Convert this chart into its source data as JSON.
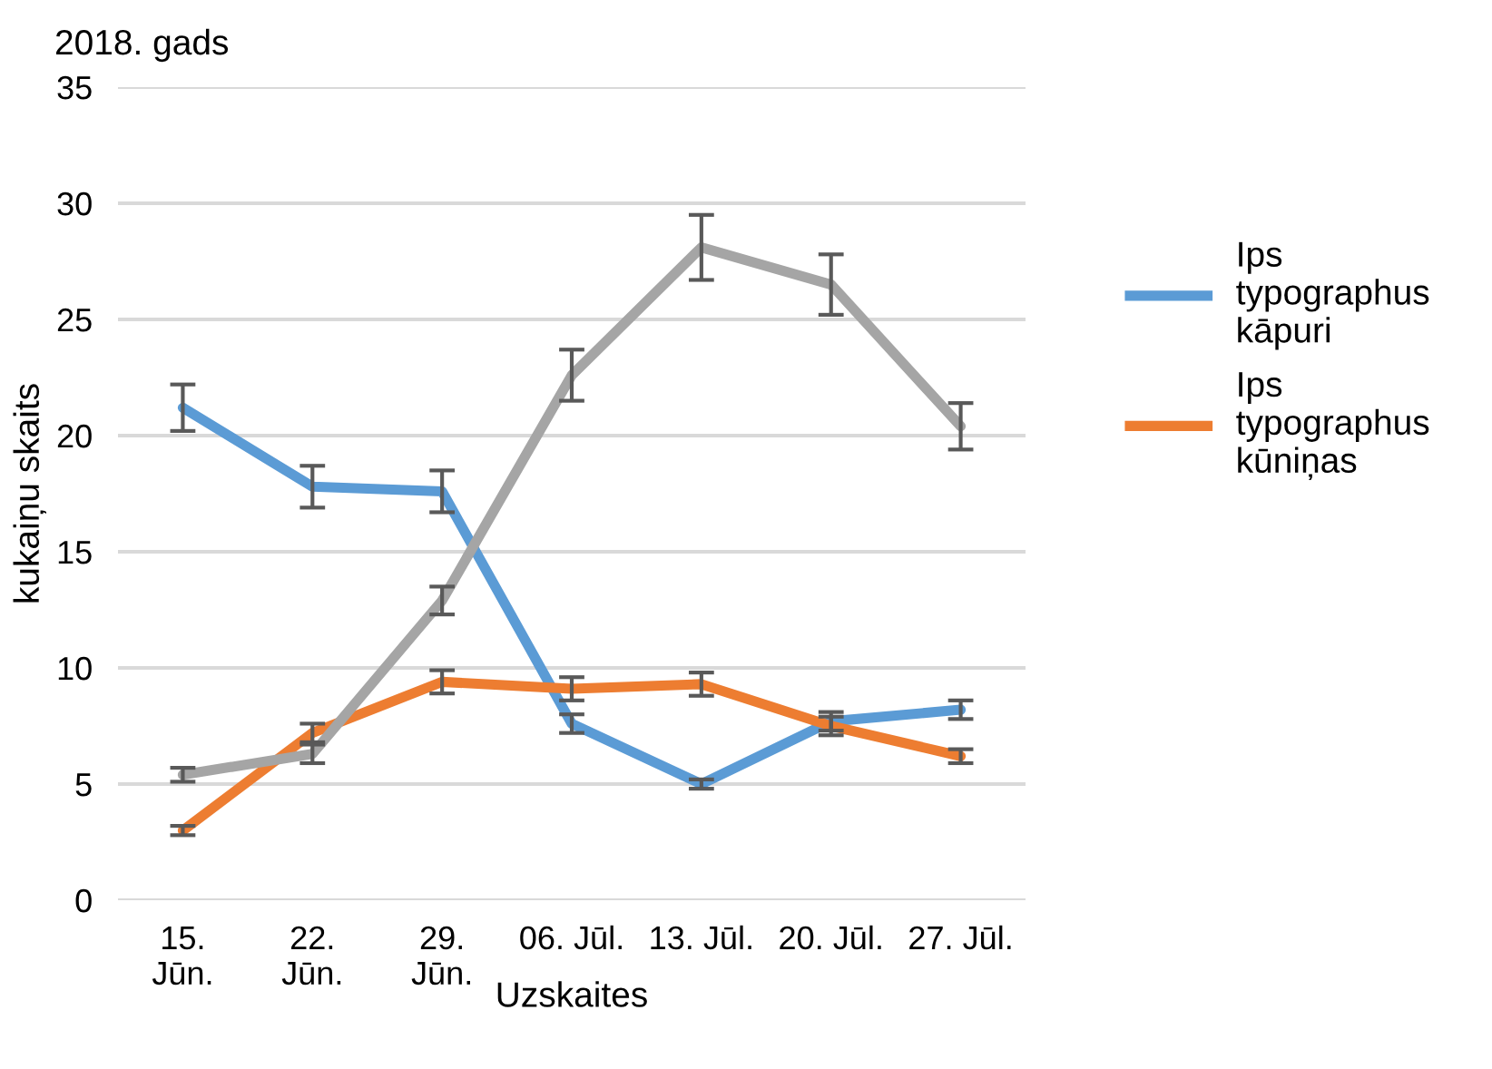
{
  "chart_data": {
    "type": "line",
    "title": "2018. gads",
    "xlabel": "Uzskaites",
    "ylabel": "kukaiņu skaits",
    "categories": [
      "15.\nJūn.",
      "22.\nJūn.",
      "29.\nJūn.",
      "06. Jūl.",
      "13. Jūl.",
      "20. Jūl.",
      "27. Jūl."
    ],
    "series": [
      {
        "name": "Ips\ntypographus\nkāpuri",
        "color": "#5b9bd5",
        "values": [
          21.2,
          17.8,
          17.6,
          7.6,
          5.0,
          7.7,
          8.2
        ],
        "errors": [
          1.0,
          0.9,
          0.9,
          0.4,
          0.2,
          0.4,
          0.4
        ]
      },
      {
        "name": "Ips\ntypographus\nkūniņas",
        "color": "#ed7d31",
        "values": [
          3.0,
          7.2,
          9.4,
          9.1,
          9.3,
          7.5,
          6.2
        ],
        "errors": [
          0.2,
          0.4,
          0.5,
          0.5,
          0.5,
          0.4,
          0.3
        ]
      },
      {
        "color": "#a5a5a5",
        "values": [
          5.4,
          6.3,
          12.9,
          22.6,
          28.1,
          26.5,
          20.4
        ],
        "errors": [
          0.3,
          0.4,
          0.6,
          1.1,
          1.4,
          1.3,
          1.0
        ]
      }
    ],
    "ylim": [
      0,
      35
    ],
    "yticks": [
      0,
      5,
      10,
      15,
      20,
      25,
      30,
      35
    ],
    "grid": "y",
    "legend": "right"
  }
}
